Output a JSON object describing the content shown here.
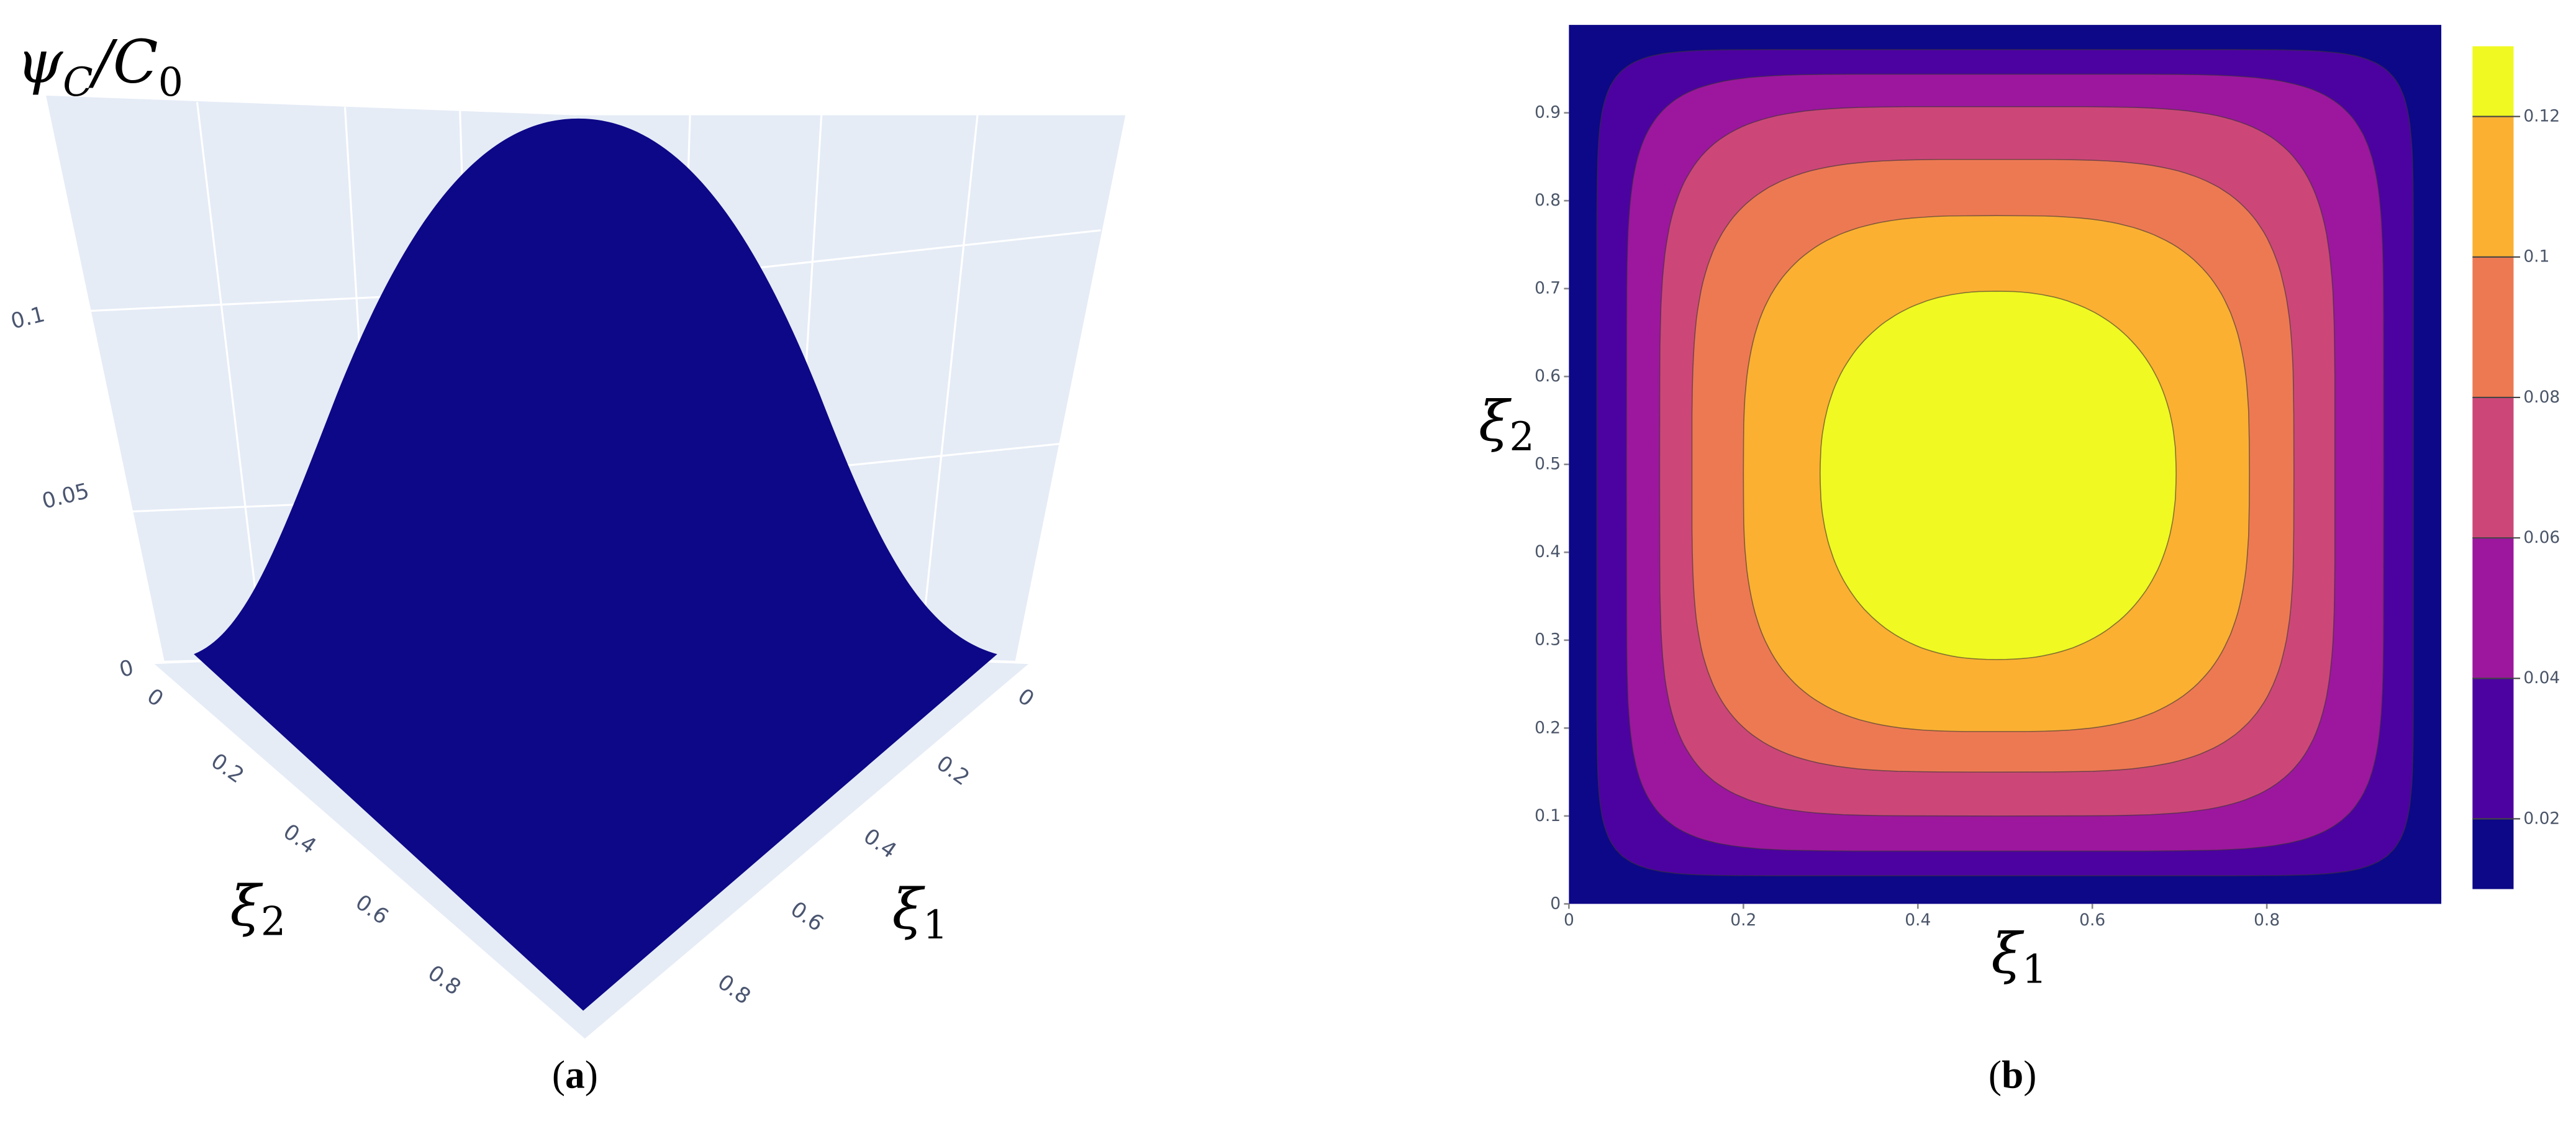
{
  "chart_data": [
    {
      "type": "surface",
      "zlabel": [
        "ψ",
        "C",
        "/C",
        "0"
      ],
      "xlabel": [
        "ξ",
        "1"
      ],
      "ylabel": [
        "ξ",
        "2"
      ],
      "xticks": [
        0,
        0.2,
        0.4,
        0.6,
        0.8
      ],
      "yticks": [
        0,
        0.2,
        0.4,
        0.6,
        0.8
      ],
      "zticks": [
        0,
        0.05,
        0.1
      ],
      "colors": [
        "#0d0887",
        "#6a00a8",
        "#b12a90",
        "#e16462",
        "#fca636",
        "#f0f921"
      ],
      "caption": [
        "(",
        "a",
        ")"
      ]
    },
    {
      "type": "contour",
      "xlabel": [
        "ξ",
        "1"
      ],
      "ylabel": [
        "ξ",
        "2"
      ],
      "xlim": [
        0,
        1
      ],
      "ylim": [
        0,
        1
      ],
      "xticks": [
        0,
        0.2,
        0.4,
        0.6,
        0.8
      ],
      "yticks": [
        0,
        0.1,
        0.2,
        0.3,
        0.4,
        0.5,
        0.6,
        0.7,
        0.8,
        0.9
      ],
      "levels": [
        0.02,
        0.04,
        0.06,
        0.08,
        0.1,
        0.12
      ],
      "colors": [
        "#0d0887",
        "#4c02a1",
        "#9c179e",
        "#cc4778",
        "#ed7953",
        "#fbb032",
        "#f0f921"
      ],
      "clim": [
        0.01,
        0.13
      ],
      "caption": [
        "(",
        "b",
        ")"
      ]
    }
  ]
}
